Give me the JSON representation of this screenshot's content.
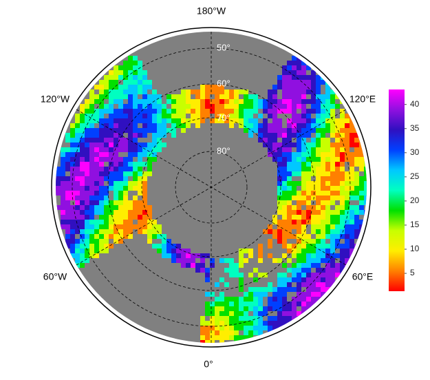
{
  "map": {
    "longitude_labels": [
      "180°W",
      "120°E",
      "60°E",
      "0°",
      "60°W",
      "120°W"
    ],
    "latitude_labels": [
      "50°",
      "60°",
      "70°",
      "80°"
    ],
    "colorbar": {
      "range": [
        1.3,
        43.1
      ],
      "ticks": [
        5,
        10,
        15,
        20,
        25,
        30,
        35,
        40
      ],
      "colors": [
        "#ff0000",
        "#ff8000",
        "#ffee00",
        "#c8ff00",
        "#00e000",
        "#00ffc0",
        "#00c8ff",
        "#0040ff",
        "#3010c0",
        "#9010e0",
        "#ff00ff"
      ]
    }
  }
}
